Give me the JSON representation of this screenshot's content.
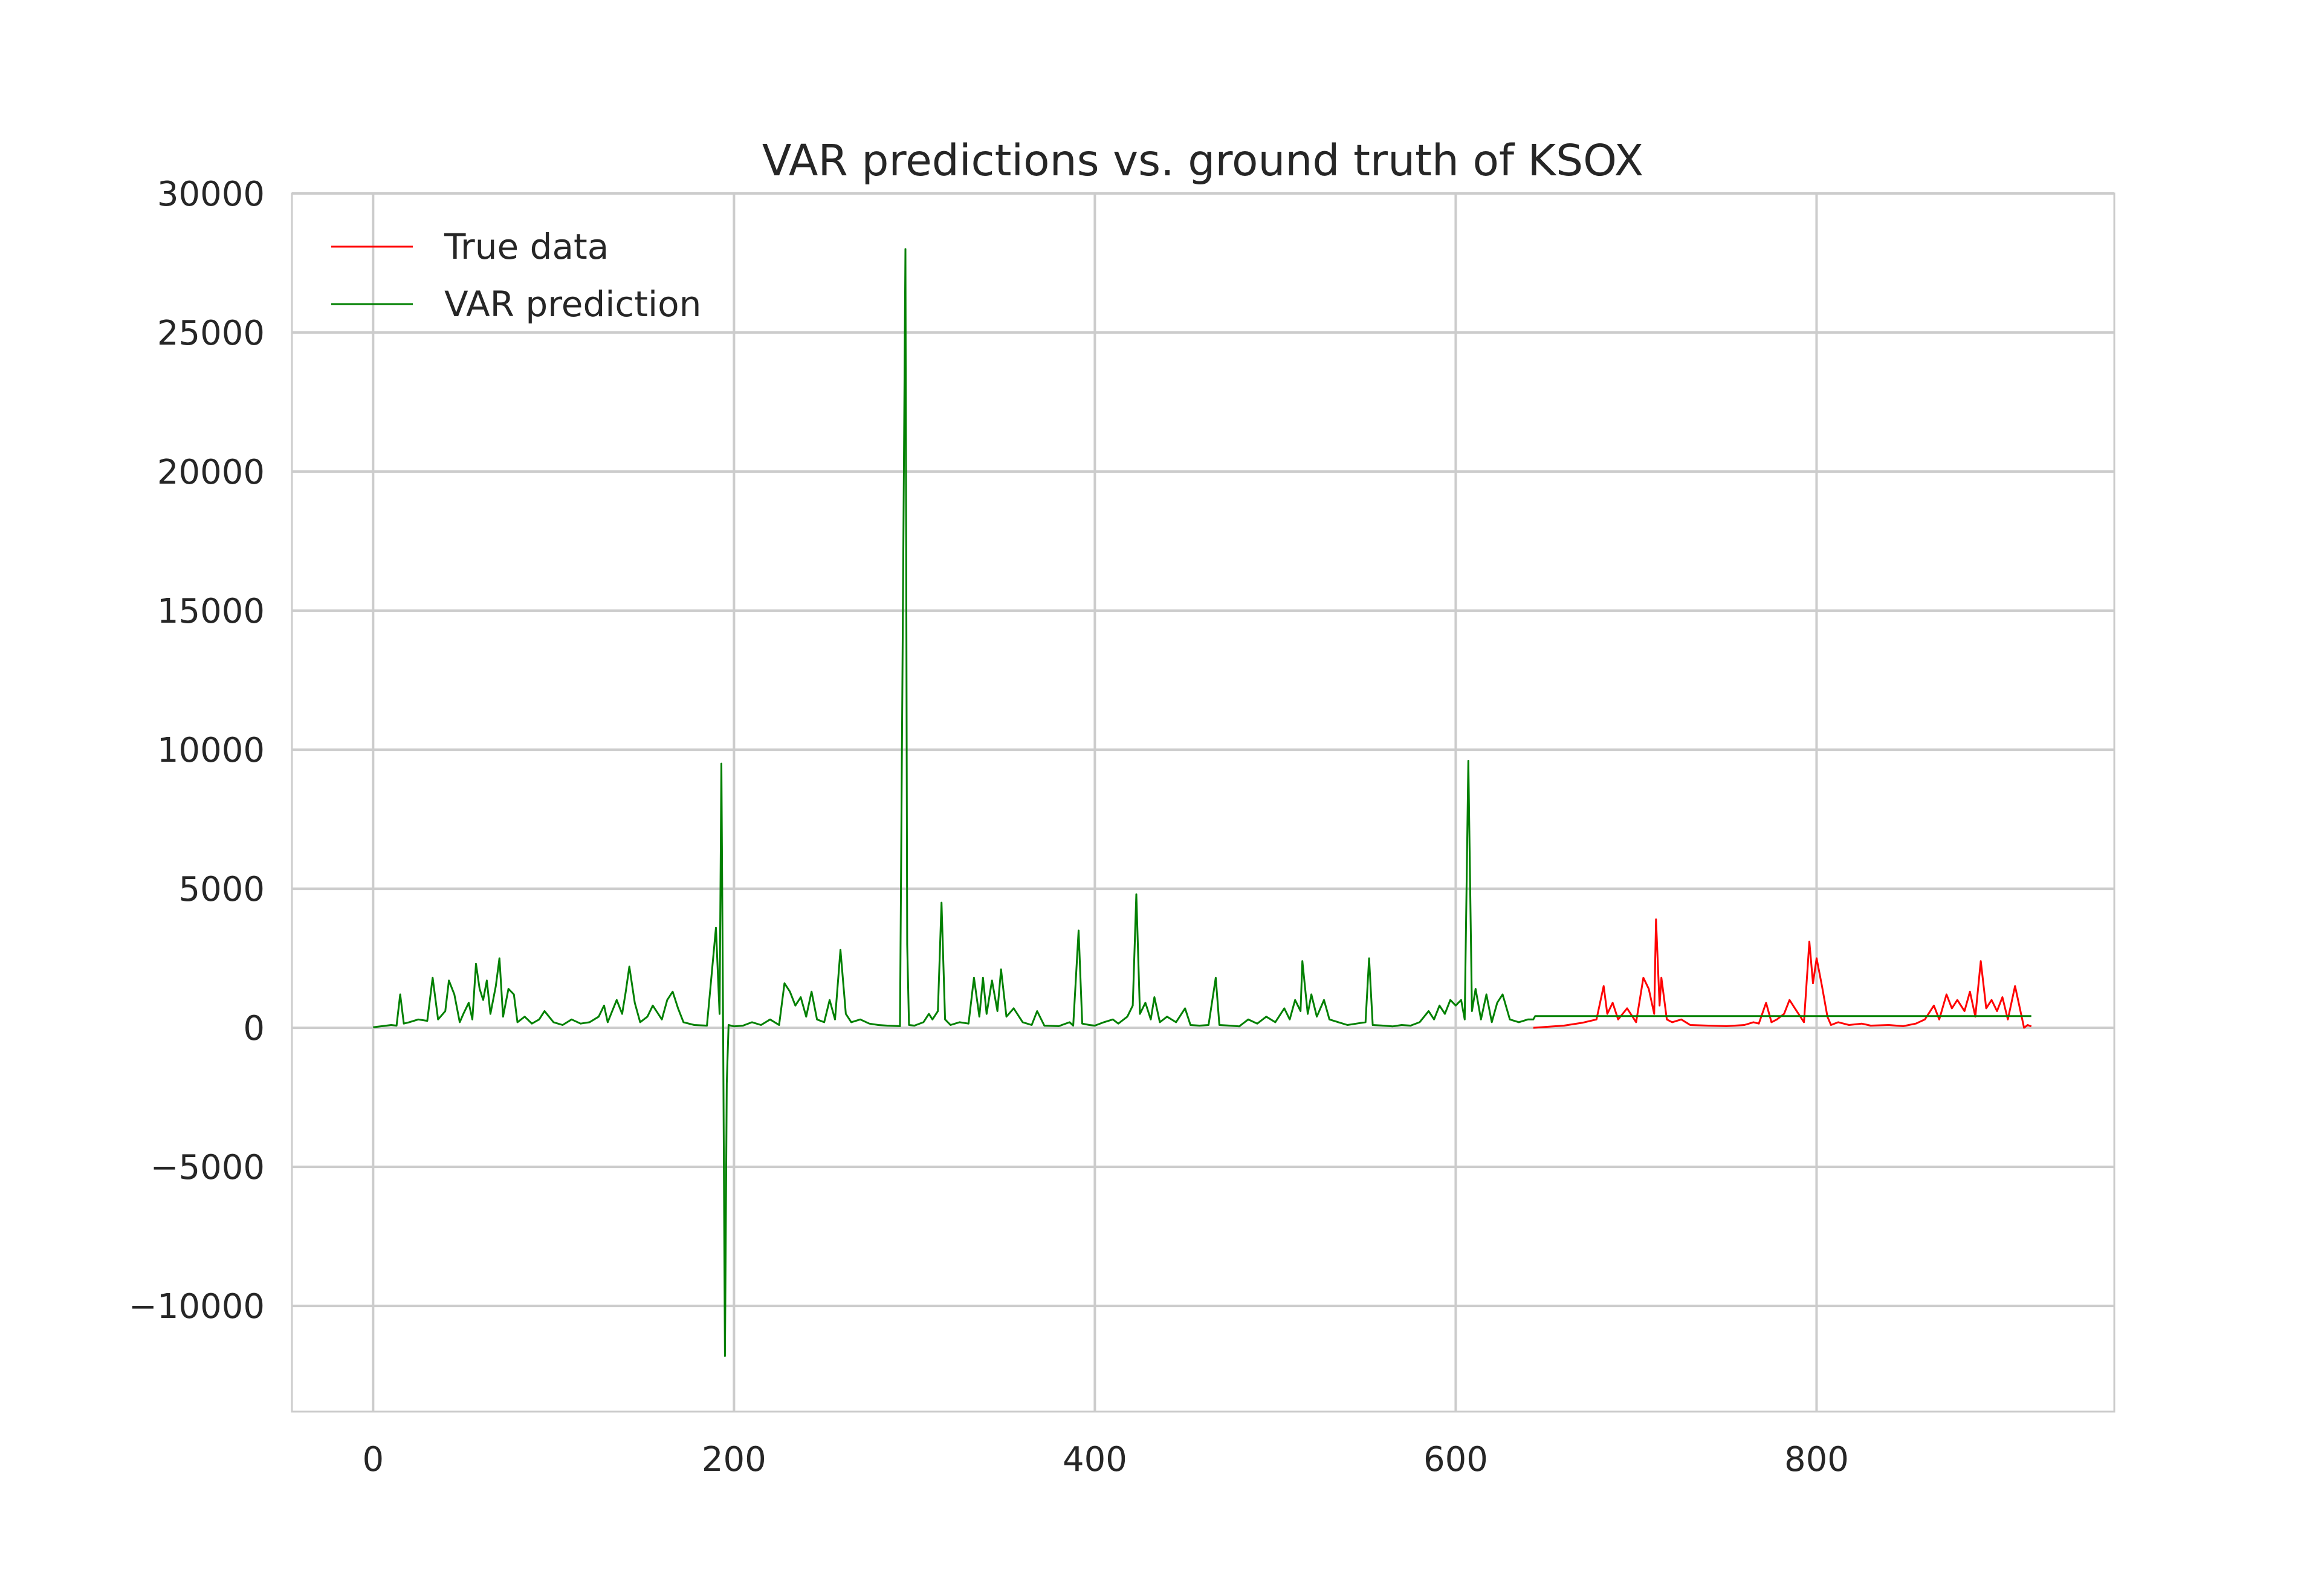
{
  "chart_data": {
    "type": "line",
    "title": "VAR predictions vs. ground truth of KSOX",
    "xlabel": "",
    "ylabel": "",
    "xlim": [
      -45,
      965
    ],
    "ylim": [
      -13800,
      30000
    ],
    "x_ticks": [
      0,
      200,
      400,
      600,
      800
    ],
    "y_ticks": [
      30000,
      25000,
      20000,
      15000,
      10000,
      5000,
      0,
      -5000,
      -10000
    ],
    "grid": true,
    "legend_position": "top-left",
    "series": [
      {
        "name": "True data",
        "color": "#ff0000",
        "points": [
          [
            643,
            0
          ],
          [
            660,
            80
          ],
          [
            670,
            180
          ],
          [
            678,
            300
          ],
          [
            682,
            1500
          ],
          [
            684,
            500
          ],
          [
            687,
            900
          ],
          [
            690,
            300
          ],
          [
            695,
            700
          ],
          [
            700,
            200
          ],
          [
            704,
            1800
          ],
          [
            707,
            1400
          ],
          [
            710,
            500
          ],
          [
            711,
            3900
          ],
          [
            713,
            800
          ],
          [
            714,
            1800
          ],
          [
            717,
            300
          ],
          [
            720,
            200
          ],
          [
            725,
            300
          ],
          [
            730,
            100
          ],
          [
            740,
            80
          ],
          [
            750,
            60
          ],
          [
            760,
            100
          ],
          [
            765,
            200
          ],
          [
            768,
            150
          ],
          [
            772,
            900
          ],
          [
            775,
            200
          ],
          [
            778,
            300
          ],
          [
            782,
            500
          ],
          [
            785,
            1000
          ],
          [
            788,
            700
          ],
          [
            790,
            500
          ],
          [
            793,
            200
          ],
          [
            796,
            3100
          ],
          [
            798,
            1600
          ],
          [
            800,
            2500
          ],
          [
            803,
            1500
          ],
          [
            806,
            400
          ],
          [
            808,
            100
          ],
          [
            812,
            200
          ],
          [
            818,
            100
          ],
          [
            825,
            150
          ],
          [
            830,
            80
          ],
          [
            840,
            100
          ],
          [
            848,
            60
          ],
          [
            855,
            150
          ],
          [
            860,
            300
          ],
          [
            865,
            800
          ],
          [
            868,
            300
          ],
          [
            872,
            1200
          ],
          [
            875,
            700
          ],
          [
            878,
            1000
          ],
          [
            882,
            600
          ],
          [
            885,
            1300
          ],
          [
            888,
            400
          ],
          [
            891,
            2400
          ],
          [
            894,
            700
          ],
          [
            897,
            1000
          ],
          [
            900,
            600
          ],
          [
            903,
            1100
          ],
          [
            906,
            300
          ],
          [
            910,
            1500
          ],
          [
            912,
            900
          ],
          [
            915,
            0
          ],
          [
            917,
            100
          ],
          [
            919,
            50
          ]
        ]
      },
      {
        "name": "VAR prediction",
        "color": "#008000",
        "points": [
          [
            0,
            20
          ],
          [
            5,
            60
          ],
          [
            10,
            100
          ],
          [
            13,
            80
          ],
          [
            15,
            1200
          ],
          [
            17,
            150
          ],
          [
            20,
            200
          ],
          [
            25,
            300
          ],
          [
            30,
            250
          ],
          [
            33,
            1800
          ],
          [
            36,
            300
          ],
          [
            40,
            600
          ],
          [
            42,
            1700
          ],
          [
            45,
            1200
          ],
          [
            48,
            200
          ],
          [
            50,
            500
          ],
          [
            53,
            900
          ],
          [
            55,
            300
          ],
          [
            57,
            2300
          ],
          [
            59,
            1400
          ],
          [
            61,
            1000
          ],
          [
            63,
            1700
          ],
          [
            65,
            500
          ],
          [
            68,
            1500
          ],
          [
            70,
            2500
          ],
          [
            72,
            400
          ],
          [
            75,
            1400
          ],
          [
            78,
            1200
          ],
          [
            80,
            200
          ],
          [
            84,
            400
          ],
          [
            88,
            150
          ],
          [
            92,
            300
          ],
          [
            95,
            600
          ],
          [
            100,
            200
          ],
          [
            105,
            100
          ],
          [
            110,
            300
          ],
          [
            115,
            150
          ],
          [
            120,
            200
          ],
          [
            125,
            400
          ],
          [
            128,
            800
          ],
          [
            130,
            200
          ],
          [
            135,
            1000
          ],
          [
            138,
            500
          ],
          [
            140,
            1300
          ],
          [
            142,
            2200
          ],
          [
            145,
            900
          ],
          [
            148,
            200
          ],
          [
            152,
            400
          ],
          [
            155,
            800
          ],
          [
            158,
            500
          ],
          [
            160,
            300
          ],
          [
            163,
            1000
          ],
          [
            166,
            1300
          ],
          [
            169,
            700
          ],
          [
            172,
            200
          ],
          [
            178,
            100
          ],
          [
            185,
            80
          ],
          [
            190,
            3600
          ],
          [
            192,
            500
          ],
          [
            193,
            9500
          ],
          [
            194,
            -500
          ],
          [
            195,
            -11800
          ],
          [
            196,
            -2000
          ],
          [
            197,
            100
          ],
          [
            200,
            50
          ],
          [
            205,
            80
          ],
          [
            210,
            200
          ],
          [
            215,
            100
          ],
          [
            220,
            300
          ],
          [
            225,
            100
          ],
          [
            228,
            1600
          ],
          [
            231,
            1300
          ],
          [
            234,
            800
          ],
          [
            237,
            1100
          ],
          [
            240,
            400
          ],
          [
            243,
            1300
          ],
          [
            246,
            300
          ],
          [
            250,
            200
          ],
          [
            253,
            1000
          ],
          [
            256,
            300
          ],
          [
            259,
            2800
          ],
          [
            262,
            500
          ],
          [
            265,
            200
          ],
          [
            270,
            300
          ],
          [
            275,
            150
          ],
          [
            280,
            100
          ],
          [
            285,
            80
          ],
          [
            292,
            60
          ],
          [
            295,
            28000
          ],
          [
            296,
            3000
          ],
          [
            297,
            100
          ],
          [
            300,
            80
          ],
          [
            305,
            200
          ],
          [
            308,
            500
          ],
          [
            310,
            300
          ],
          [
            313,
            600
          ],
          [
            315,
            4500
          ],
          [
            317,
            300
          ],
          [
            320,
            100
          ],
          [
            325,
            200
          ],
          [
            330,
            150
          ],
          [
            333,
            1800
          ],
          [
            336,
            400
          ],
          [
            338,
            1800
          ],
          [
            340,
            500
          ],
          [
            343,
            1700
          ],
          [
            346,
            600
          ],
          [
            348,
            2100
          ],
          [
            351,
            400
          ],
          [
            355,
            700
          ],
          [
            360,
            200
          ],
          [
            365,
            100
          ],
          [
            368,
            600
          ],
          [
            372,
            80
          ],
          [
            380,
            60
          ],
          [
            386,
            200
          ],
          [
            388,
            80
          ],
          [
            391,
            3500
          ],
          [
            393,
            150
          ],
          [
            397,
            100
          ],
          [
            400,
            80
          ],
          [
            405,
            200
          ],
          [
            410,
            300
          ],
          [
            413,
            150
          ],
          [
            418,
            400
          ],
          [
            421,
            800
          ],
          [
            423,
            4800
          ],
          [
            425,
            500
          ],
          [
            428,
            900
          ],
          [
            431,
            300
          ],
          [
            433,
            1100
          ],
          [
            436,
            200
          ],
          [
            440,
            400
          ],
          [
            445,
            200
          ],
          [
            450,
            700
          ],
          [
            453,
            100
          ],
          [
            458,
            80
          ],
          [
            463,
            100
          ],
          [
            467,
            1800
          ],
          [
            469,
            100
          ],
          [
            475,
            80
          ],
          [
            480,
            50
          ],
          [
            485,
            300
          ],
          [
            490,
            150
          ],
          [
            495,
            400
          ],
          [
            500,
            200
          ],
          [
            505,
            700
          ],
          [
            508,
            300
          ],
          [
            511,
            1000
          ],
          [
            514,
            600
          ],
          [
            515,
            2400
          ],
          [
            518,
            500
          ],
          [
            520,
            1200
          ],
          [
            523,
            400
          ],
          [
            527,
            1000
          ],
          [
            530,
            300
          ],
          [
            535,
            200
          ],
          [
            540,
            100
          ],
          [
            545,
            150
          ],
          [
            550,
            200
          ],
          [
            552,
            2500
          ],
          [
            554,
            100
          ],
          [
            560,
            80
          ],
          [
            565,
            50
          ],
          [
            570,
            100
          ],
          [
            575,
            80
          ],
          [
            580,
            200
          ],
          [
            585,
            600
          ],
          [
            588,
            300
          ],
          [
            591,
            800
          ],
          [
            594,
            500
          ],
          [
            597,
            1000
          ],
          [
            600,
            800
          ],
          [
            603,
            1000
          ],
          [
            605,
            300
          ],
          [
            607,
            9600
          ],
          [
            609,
            600
          ],
          [
            611,
            1400
          ],
          [
            614,
            300
          ],
          [
            617,
            1200
          ],
          [
            620,
            200
          ],
          [
            623,
            900
          ],
          [
            626,
            1200
          ],
          [
            630,
            300
          ],
          [
            635,
            200
          ],
          [
            640,
            300
          ],
          [
            643,
            300
          ],
          [
            644,
            420
          ],
          [
            919,
            420
          ]
        ]
      }
    ]
  }
}
